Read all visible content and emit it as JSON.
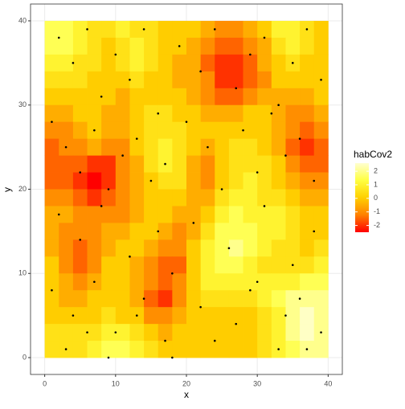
{
  "chart_data": {
    "type": "raster",
    "x_label": "x",
    "y_label": "y",
    "legend_title": "habCov2",
    "xlim": [
      -2,
      42
    ],
    "ylim": [
      -2,
      42
    ],
    "xticks": [
      0,
      10,
      20,
      30,
      40
    ],
    "yticks": [
      0,
      10,
      20,
      30,
      40
    ],
    "grid": true,
    "legend_position": "right",
    "color_limits": [
      -2.5,
      2.6
    ],
    "legend_ticks": [
      2,
      1,
      0,
      -1,
      -2
    ],
    "color_stops": [
      "#ff0000",
      "#ff8000",
      "#ffd000",
      "#ffff40",
      "#ffffd0"
    ],
    "x": [
      1,
      3,
      5,
      7,
      9,
      11,
      13,
      15,
      17,
      19,
      21,
      23,
      25,
      27,
      29,
      31,
      33,
      35,
      37,
      39
    ],
    "y": [
      39,
      37,
      35,
      33,
      31,
      29,
      27,
      25,
      23,
      21,
      19,
      17,
      15,
      13,
      11,
      9,
      7,
      5,
      3,
      1
    ],
    "z": [
      [
        1.5,
        1.5,
        1,
        0.5,
        0.5,
        1,
        0.5,
        0.5,
        0,
        0,
        0,
        -0.5,
        -1,
        -1,
        -0.5,
        0,
        1,
        1,
        0.5,
        0
      ],
      [
        1.5,
        1.5,
        1,
        0.5,
        0,
        0.5,
        1,
        0.5,
        0,
        0,
        -0.5,
        -1,
        -1.5,
        -1.5,
        -1,
        -0.5,
        0.5,
        1,
        0.5,
        0
      ],
      [
        1,
        1,
        0.5,
        0.5,
        0,
        0.5,
        1,
        0.5,
        0,
        -0.5,
        -0.5,
        -1.5,
        -2,
        -2,
        -1.5,
        -0.5,
        0,
        0.5,
        0,
        0
      ],
      [
        0.5,
        0.5,
        0.5,
        0,
        0,
        0,
        0.5,
        0,
        0,
        -0.5,
        -0.5,
        -1,
        -2,
        -2,
        -1.5,
        -1,
        0,
        0,
        0,
        0
      ],
      [
        0,
        0,
        0,
        0,
        0,
        -0.5,
        0,
        0,
        0,
        0,
        -0.5,
        -1,
        -1.5,
        -1.5,
        -1,
        -0.5,
        -0.5,
        -0.5,
        -0.5,
        0
      ],
      [
        -0.5,
        -0.5,
        0,
        0,
        -0.5,
        -0.5,
        0,
        0.5,
        0.5,
        0,
        0,
        -0.5,
        -0.5,
        -0.5,
        0,
        0,
        -0.5,
        -1,
        -1,
        -0.5
      ],
      [
        -1,
        -1,
        -0.5,
        0,
        -0.5,
        -0.5,
        0,
        0.5,
        0.5,
        0.5,
        0,
        0,
        0,
        0,
        0,
        0,
        -0.5,
        -1,
        -1.5,
        -1
      ],
      [
        -1.5,
        -1,
        -1,
        -0.5,
        -1,
        -1,
        0,
        0.5,
        1,
        0.5,
        0,
        -0.5,
        0,
        0.5,
        0.5,
        0,
        -0.5,
        -1.5,
        -2,
        -1.5
      ],
      [
        -1.5,
        -1.5,
        -1.5,
        -2,
        -2,
        -1,
        -0.5,
        0.5,
        1,
        0.5,
        -0.5,
        -1,
        0,
        0.5,
        0.5,
        0.5,
        0,
        -1,
        -1.5,
        -1.5
      ],
      [
        -1.5,
        -1.5,
        -2,
        -2.5,
        -2,
        -1,
        -0.5,
        0,
        0.5,
        0.5,
        -0.5,
        -1,
        0,
        0.5,
        1,
        0.5,
        0,
        -0.5,
        -1,
        -1
      ],
      [
        -1,
        -1,
        -1.5,
        -2,
        -1.5,
        -1,
        -0.5,
        0,
        0,
        0,
        -0.5,
        -0.5,
        0.5,
        1,
        1,
        0.5,
        0.5,
        0,
        -0.5,
        -0.5
      ],
      [
        -0.5,
        -0.5,
        -1,
        -1,
        -1,
        -1,
        -0.5,
        0,
        0,
        -0.5,
        -0.5,
        0,
        1,
        1.5,
        1,
        1,
        1,
        0.5,
        0,
        0
      ],
      [
        -0.5,
        -1,
        -1,
        -1,
        -0.5,
        -0.5,
        0,
        0,
        -0.5,
        -1,
        -0.5,
        0.5,
        1.5,
        1.5,
        1.5,
        1,
        1,
        0.5,
        0,
        0
      ],
      [
        -0.5,
        -1,
        -1.5,
        -1,
        -0.5,
        0,
        0,
        -0.5,
        -1,
        -1,
        0,
        1,
        1.5,
        2,
        1.5,
        1,
        0.5,
        0.5,
        0,
        0.5
      ],
      [
        0,
        -1,
        -1.5,
        -1,
        0,
        0,
        -0.5,
        -1,
        -1.5,
        -1.5,
        0,
        1,
        1.5,
        1.5,
        1,
        0.5,
        0.5,
        0.5,
        0.5,
        1
      ],
      [
        0,
        -0.5,
        -1,
        -0.5,
        0,
        0,
        -0.5,
        -1,
        -1.5,
        -1,
        0,
        1,
        1,
        1,
        1,
        1,
        1,
        1,
        1.5,
        1.5
      ],
      [
        0,
        -0.5,
        -0.5,
        0,
        0,
        0,
        -0.5,
        -1.5,
        -2,
        -1,
        0,
        0.5,
        0.5,
        0.5,
        0.5,
        1,
        1.5,
        2,
        2,
        2
      ],
      [
        0,
        0,
        0,
        0,
        0.5,
        0,
        0,
        -1,
        -1,
        -0.5,
        0,
        0,
        0,
        0,
        0,
        0.5,
        1,
        2,
        2.5,
        2
      ],
      [
        0.5,
        0.5,
        0.5,
        0.5,
        1,
        1,
        0.5,
        0,
        -0.5,
        0,
        0,
        0,
        0,
        0,
        0,
        0.5,
        1,
        2,
        2.5,
        2
      ],
      [
        0.5,
        0.5,
        0.5,
        1,
        1.5,
        1.5,
        1,
        0.5,
        0,
        0,
        0,
        0,
        0,
        0,
        0,
        0.5,
        1,
        1.5,
        2,
        2
      ]
    ],
    "points": {
      "x": [
        2,
        4,
        6,
        8,
        10,
        12,
        14,
        16,
        19,
        22,
        24,
        27,
        29,
        31,
        33,
        35,
        37,
        39,
        1,
        3,
        5,
        7,
        9,
        11,
        13,
        15,
        17,
        20,
        23,
        25,
        28,
        30,
        32,
        34,
        36,
        38,
        2,
        5,
        8,
        12,
        16,
        18,
        21,
        26,
        31,
        35,
        38,
        1,
        4,
        7,
        10,
        14,
        17,
        22,
        27,
        30,
        33,
        36,
        39,
        3,
        6,
        9,
        13,
        18,
        24,
        29,
        34,
        37
      ],
      "y": [
        38,
        35,
        39,
        31,
        36,
        33,
        39,
        29,
        37,
        34,
        39,
        32,
        36,
        38,
        30,
        35,
        39,
        33,
        28,
        25,
        22,
        27,
        20,
        24,
        26,
        21,
        23,
        28,
        25,
        20,
        27,
        22,
        29,
        24,
        26,
        21,
        17,
        14,
        18,
        12,
        15,
        10,
        16,
        13,
        18,
        11,
        15,
        8,
        5,
        9,
        3,
        7,
        2,
        6,
        4,
        9,
        1,
        7,
        3,
        1,
        3,
        0,
        5,
        0,
        2,
        8,
        5,
        1
      ]
    }
  }
}
